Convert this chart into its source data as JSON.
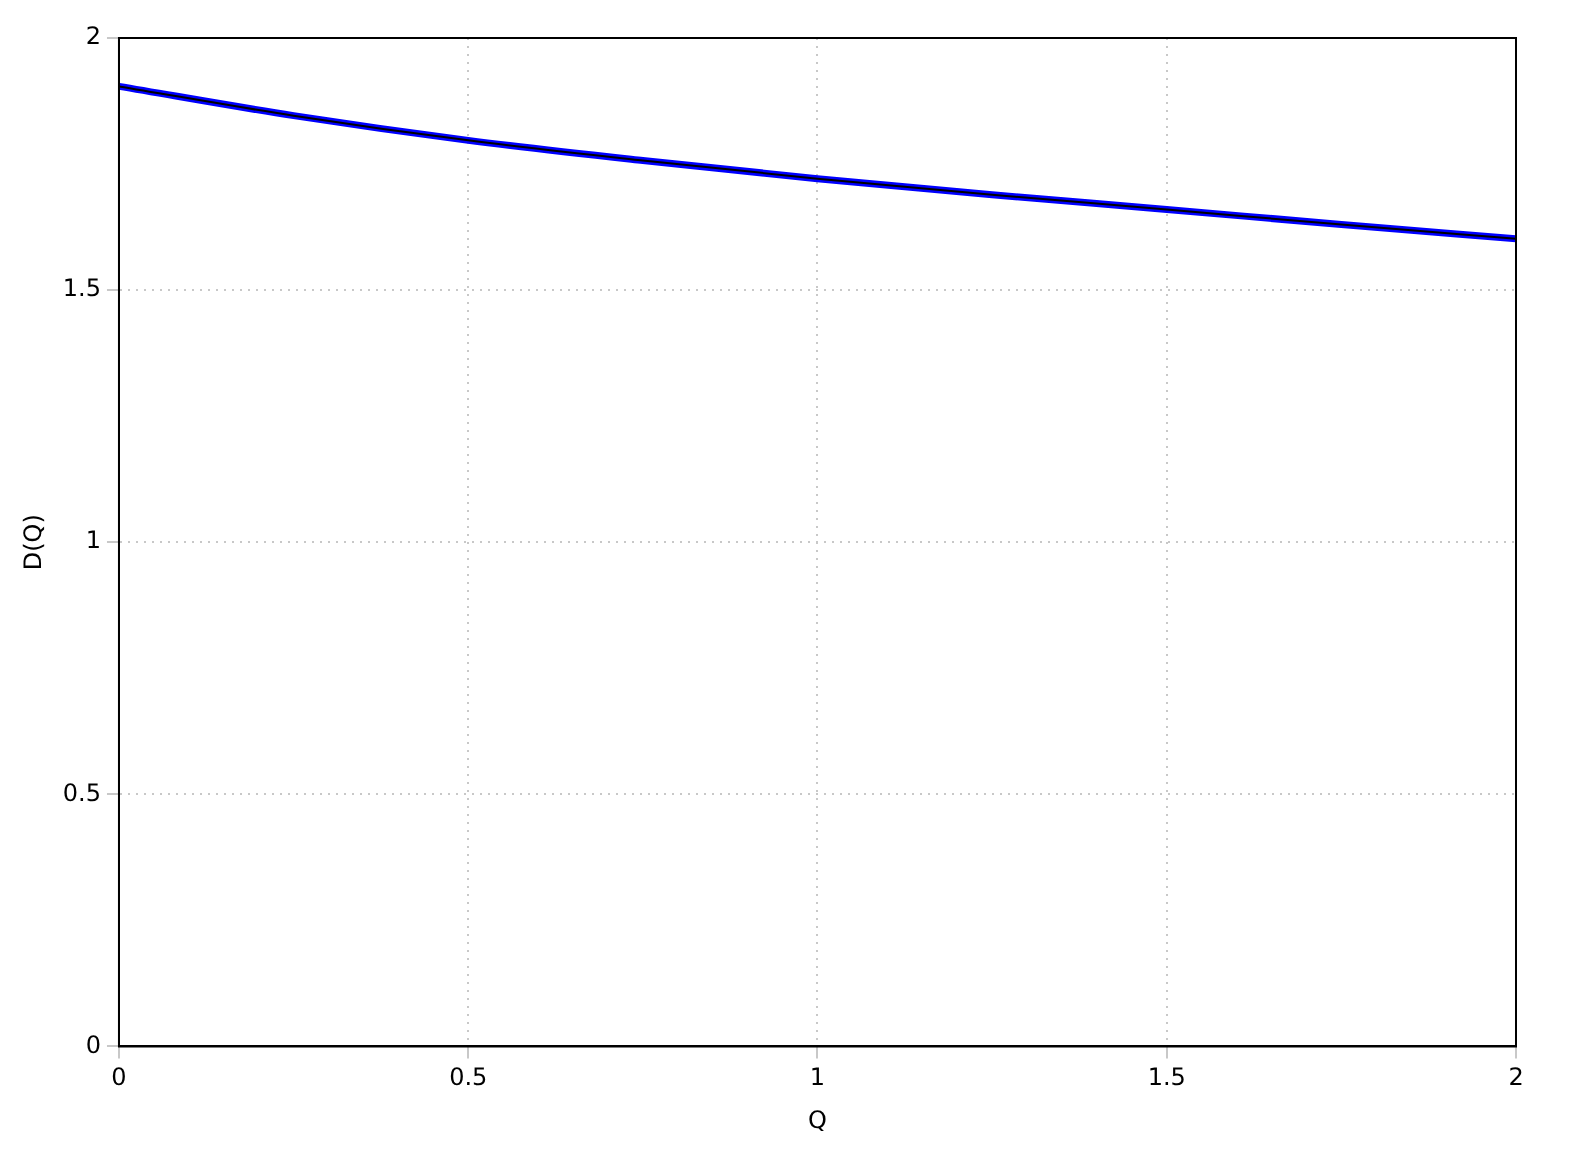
{
  "chart_data": {
    "type": "line",
    "xlabel": "Q",
    "ylabel": "D(Q)",
    "x": [
      0,
      0.25,
      0.5,
      0.75,
      1,
      1.25,
      1.5,
      1.75,
      2
    ],
    "series": [
      {
        "color": "#0000ff",
        "values": [
          1.904,
          1.846,
          1.797,
          1.757,
          1.721,
          1.689,
          1.66,
          1.63,
          1.602
        ]
      },
      {
        "color": "#000000",
        "values": [
          1.904,
          1.846,
          1.797,
          1.757,
          1.721,
          1.689,
          1.66,
          1.63,
          1.602
        ]
      }
    ],
    "xlim": [
      0,
      2
    ],
    "xticks": [
      0,
      0.5,
      1,
      1.5,
      2
    ],
    "ylim": [
      0,
      2
    ],
    "yticks": [
      0,
      0.5,
      1,
      1.5,
      2
    ],
    "grid": true,
    "legend": false,
    "marker": "none",
    "line_style": "solid"
  }
}
